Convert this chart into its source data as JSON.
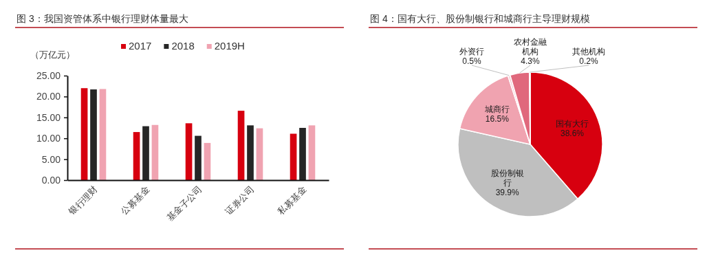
{
  "chart_data": [
    {
      "type": "bar",
      "title": "图 3：我国资管体系中银行理财体量最大",
      "ylabel": "（万亿元）",
      "categories": [
        "银行理财",
        "公募基金",
        "基金子公司",
        "证券公司",
        "私募基金"
      ],
      "series": [
        {
          "name": "2017",
          "color": "#d7000f",
          "values": [
            22.0,
            11.5,
            13.6,
            16.6,
            11.1
          ]
        },
        {
          "name": "2018",
          "color": "#262626",
          "values": [
            21.7,
            12.9,
            10.6,
            13.1,
            12.5
          ]
        },
        {
          "name": "2019H",
          "color": "#f0a3b1",
          "values": [
            21.8,
            13.2,
            8.9,
            12.4,
            13.1
          ]
        }
      ],
      "ylim": [
        0,
        25
      ],
      "yticks": [
        {
          "value": 0,
          "label": "0.00"
        },
        {
          "value": 5,
          "label": "5.00"
        },
        {
          "value": 10,
          "label": "10.00"
        },
        {
          "value": 15,
          "label": "15.00"
        },
        {
          "value": 20,
          "label": "20.00"
        },
        {
          "value": 25,
          "label": "25.00"
        }
      ],
      "grid": false,
      "legend": "top"
    },
    {
      "type": "pie",
      "title": "图 4：国有大行、股份制银行和城商行主导理财规模",
      "categories": [
        "国有大行",
        "股份制银行",
        "城商行",
        "外资行",
        "农村金融机构",
        "其他机构"
      ],
      "values": [
        38.6,
        39.9,
        16.5,
        0.5,
        4.3,
        0.2
      ],
      "value_labels": [
        "38.6%",
        "39.9%",
        "16.5%",
        "0.5%",
        "4.3%",
        "0.2%"
      ],
      "colors": [
        "#d7000f",
        "#bfbfbf",
        "#f0a3b0",
        "#f6cdd4",
        "#e0687c",
        "#8c8c8c"
      ]
    }
  ]
}
